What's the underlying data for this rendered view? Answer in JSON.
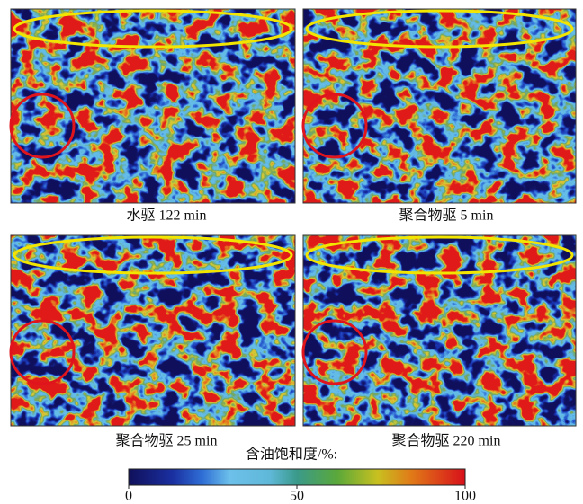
{
  "panels": [
    {
      "caption": "水驱 122 min"
    },
    {
      "caption": "聚合物驱 5 min"
    },
    {
      "caption": "聚合物驱 25 min"
    },
    {
      "caption": "聚合物驱 220 min"
    }
  ],
  "colorbar": {
    "title": "含油饱和度/%:",
    "lim": [
      0,
      100
    ],
    "ticks": [
      0,
      50,
      100
    ]
  }
}
